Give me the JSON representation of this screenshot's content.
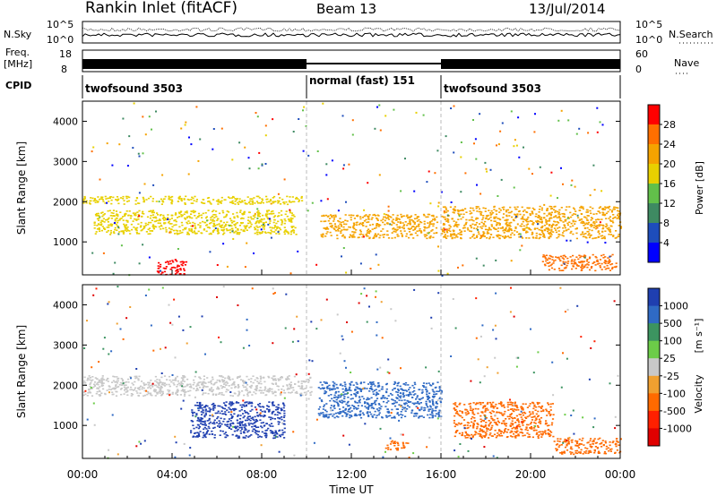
{
  "header": {
    "station": "Rankin Inlet (fitACF)",
    "beam": "Beam 13",
    "date": "13/Jul/2014"
  },
  "noise_panel": {
    "left_label": "N.Sky",
    "right_label": "N.Search",
    "left_ticks": [
      "10^5",
      "10^0"
    ],
    "right_ticks": [
      "10^5",
      "10^0"
    ]
  },
  "freq_panel": {
    "left_label_line1": "Freq.",
    "left_label_line2": "[MHz]",
    "right_label": "Nave",
    "left_ticks": [
      "18",
      "8"
    ],
    "right_ticks": [
      "60",
      "0"
    ]
  },
  "cpid_panel": {
    "label": "CPID",
    "segments": [
      {
        "name": "twofsound 3503",
        "start_hour": 0,
        "end_hour": 10
      },
      {
        "name": "normal (fast) 151",
        "start_hour": 10,
        "end_hour": 16
      },
      {
        "name": "twofsound 3503",
        "start_hour": 16,
        "end_hour": 24
      }
    ]
  },
  "chart_data": [
    {
      "type": "heatmap",
      "title": "",
      "ylabel": "Slant Range [km]",
      "xlabel": "",
      "xlim_hours": [
        0,
        24
      ],
      "ylim": [
        180,
        4500
      ],
      "yticks": [
        1000,
        2000,
        3000,
        4000
      ],
      "colorbar": {
        "label": "Power [dB]",
        "ticks": [
          "28",
          "24",
          "20",
          "16",
          "12",
          "8",
          "4"
        ],
        "colors": [
          "#ff0000",
          "#ff6f00",
          "#f5a300",
          "#e8d000",
          "#62c04a",
          "#3e8a62",
          "#1e4dbb",
          "#0000ff"
        ]
      },
      "features": [
        {
          "x_start": 0.0,
          "x_end": 9.8,
          "y_start": 1950,
          "y_end": 2150,
          "level": 4
        },
        {
          "x_start": 0.5,
          "x_end": 9.5,
          "y_start": 1200,
          "y_end": 1800,
          "level": 4
        },
        {
          "x_start": 3.3,
          "x_end": 4.6,
          "y_start": 200,
          "y_end": 600,
          "level": 7
        },
        {
          "x_start": 10.6,
          "x_end": 15.8,
          "y_start": 1100,
          "y_end": 1700,
          "level": 5
        },
        {
          "x_start": 16.0,
          "x_end": 24.0,
          "y_start": 1100,
          "y_end": 1900,
          "level": 5
        },
        {
          "x_start": 20.5,
          "x_end": 23.8,
          "y_start": 300,
          "y_end": 700,
          "level": 6
        }
      ]
    },
    {
      "type": "heatmap",
      "title": "",
      "ylabel": "Slant Range [km]",
      "xlabel": "Time UT",
      "xlim_hours": [
        0,
        24
      ],
      "ylim": [
        180,
        4500
      ],
      "yticks": [
        1000,
        2000,
        3000,
        4000
      ],
      "xticks": [
        "00:00",
        "04:00",
        "08:00",
        "12:00",
        "16:00",
        "20:00",
        "00:00"
      ],
      "colorbar": {
        "label_main": "Velocity",
        "label_unit": "[m s⁻¹]",
        "ticks": [
          "1000",
          "500",
          "100",
          "25",
          "-25",
          "-100",
          "-500",
          "-1000"
        ],
        "colors": [
          "#1f3fb0",
          "#2f6ac4",
          "#3c9460",
          "#6ccc48",
          "#c8c8c8",
          "#f0a030",
          "#ff6a00",
          "#ff2000",
          "#e00000"
        ]
      },
      "features": [
        {
          "x_start": 0.0,
          "x_end": 10.2,
          "y_start": 1750,
          "y_end": 2250,
          "velocity": 0
        },
        {
          "x_start": 4.8,
          "x_end": 9.0,
          "y_start": 700,
          "y_end": 1600,
          "velocity": 700
        },
        {
          "x_start": 10.5,
          "x_end": 16.0,
          "y_start": 1200,
          "y_end": 2100,
          "velocity": 400
        },
        {
          "x_start": 13.5,
          "x_end": 14.5,
          "y_start": 400,
          "y_end": 650,
          "velocity": -400
        },
        {
          "x_start": 16.5,
          "x_end": 21.0,
          "y_start": 700,
          "y_end": 1600,
          "velocity": -400
        },
        {
          "x_start": 21.0,
          "x_end": 24.0,
          "y_start": 300,
          "y_end": 700,
          "velocity": -300
        }
      ]
    }
  ]
}
